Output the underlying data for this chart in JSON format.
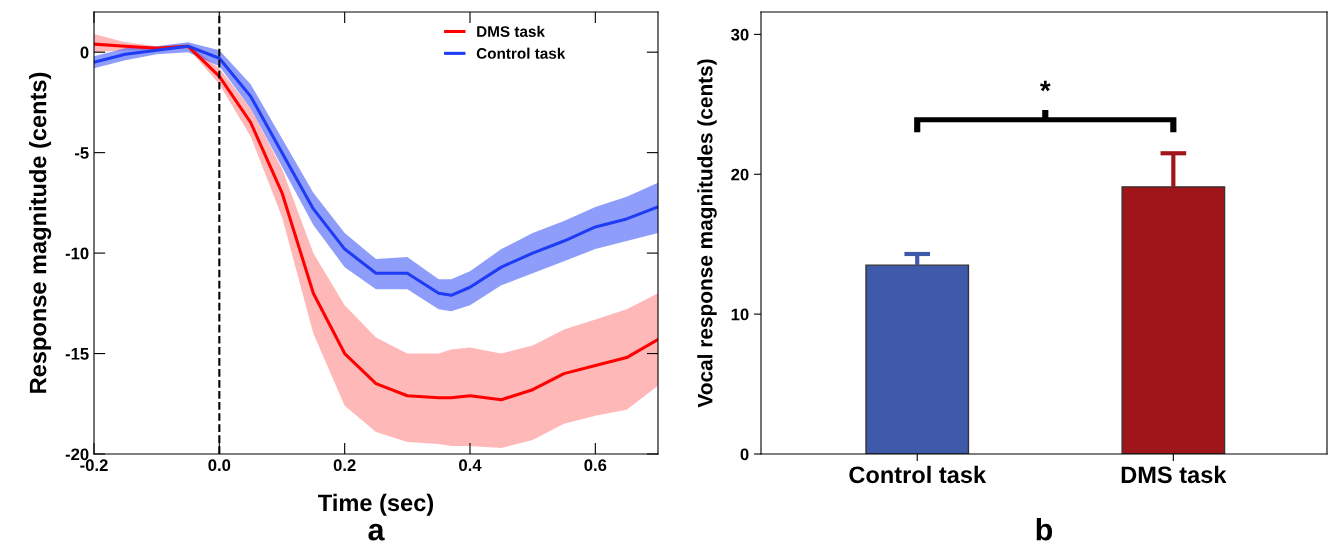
{
  "chart_data": [
    {
      "type": "line",
      "xlabel": "Time (sec)",
      "ylabel": "Response magnitude (cents)",
      "annotations": [
        "a"
      ],
      "x": [
        -0.2,
        -0.15,
        -0.1,
        -0.05,
        0,
        0.05,
        0.1,
        0.15,
        0.2,
        0.25,
        0.3,
        0.35,
        0.37,
        0.4,
        0.45,
        0.5,
        0.55,
        0.6,
        0.65,
        0.7
      ],
      "series": [
        {
          "name": "DMS task",
          "color": "#ff0000",
          "values": [
            0.4,
            0.3,
            0.2,
            0.3,
            -1.2,
            -3.5,
            -7,
            -12,
            -15,
            -16.5,
            -17.1,
            -17.2,
            -17.2,
            -17.1,
            -17.3,
            -16.8,
            -16.0,
            -15.6,
            -15.2,
            -14.3
          ],
          "lower": [
            0,
            0.1,
            0.1,
            0.2,
            -1.6,
            -4.2,
            -8.2,
            -14,
            -17.6,
            -18.9,
            -19.4,
            -19.5,
            -19.6,
            -19.6,
            -19.7,
            -19.3,
            -18.5,
            -18.1,
            -17.8,
            -16.6
          ],
          "upper": [
            0.9,
            0.5,
            0.3,
            0.4,
            -0.8,
            -2.8,
            -5.8,
            -10,
            -12.6,
            -14.2,
            -15,
            -15,
            -14.8,
            -14.7,
            -15,
            -14.6,
            -13.8,
            -13.3,
            -12.8,
            -12
          ]
        },
        {
          "name": "Control task",
          "color": "#1f3cf5",
          "values": [
            -0.5,
            -0.1,
            0.1,
            0.3,
            -0.3,
            -2.2,
            -5,
            -7.8,
            -9.8,
            -11,
            -11,
            -12,
            -12.1,
            -11.7,
            -10.7,
            -10.0,
            -9.4,
            -8.7,
            -8.3,
            -7.7
          ],
          "lower": [
            -0.8,
            -0.4,
            -0.1,
            0,
            -0.7,
            -2.8,
            -5.7,
            -8.6,
            -10.7,
            -11.8,
            -11.8,
            -12.8,
            -12.9,
            -12.6,
            -11.6,
            -11.0,
            -10.4,
            -9.8,
            -9.4,
            -9.0
          ],
          "upper": [
            -0.2,
            0.2,
            0.3,
            0.5,
            0.1,
            -1.6,
            -4.3,
            -7.0,
            -9.0,
            -10.3,
            -10.2,
            -11.3,
            -11.3,
            -10.9,
            -9.8,
            -9.0,
            -8.4,
            -7.7,
            -7.2,
            -6.5
          ]
        }
      ],
      "xlim": [
        -0.2,
        0.7
      ],
      "xticks": [
        -0.2,
        {
          "value": 0,
          "label": "0.0"
        },
        0.2,
        0.4,
        0.6
      ],
      "ylim": [
        -20,
        2
      ],
      "yticks": [
        -20,
        -15,
        -10,
        -5,
        0
      ],
      "ref_lines": [
        {
          "axis": "x",
          "value": 0,
          "color": "#000000",
          "line_style": "dashed"
        }
      ],
      "legend": "top right",
      "grid": false,
      "line_style": "solid"
    },
    {
      "type": "bar",
      "ylabel": "Vocal response magnitudes (cents)",
      "annotations": [
        "*",
        "b"
      ],
      "categories": [
        "Control task",
        "DMS task"
      ],
      "values": [
        13.5,
        19.1
      ],
      "colors": [
        "#3f5aab",
        "#a0151a"
      ],
      "errors": [
        [
          13.5,
          14.3
        ],
        [
          19.1,
          21.5
        ]
      ],
      "ylim": [
        0,
        31.6
      ],
      "yticks": [
        0,
        10,
        20,
        30
      ],
      "grid": false,
      "legend": false
    }
  ]
}
